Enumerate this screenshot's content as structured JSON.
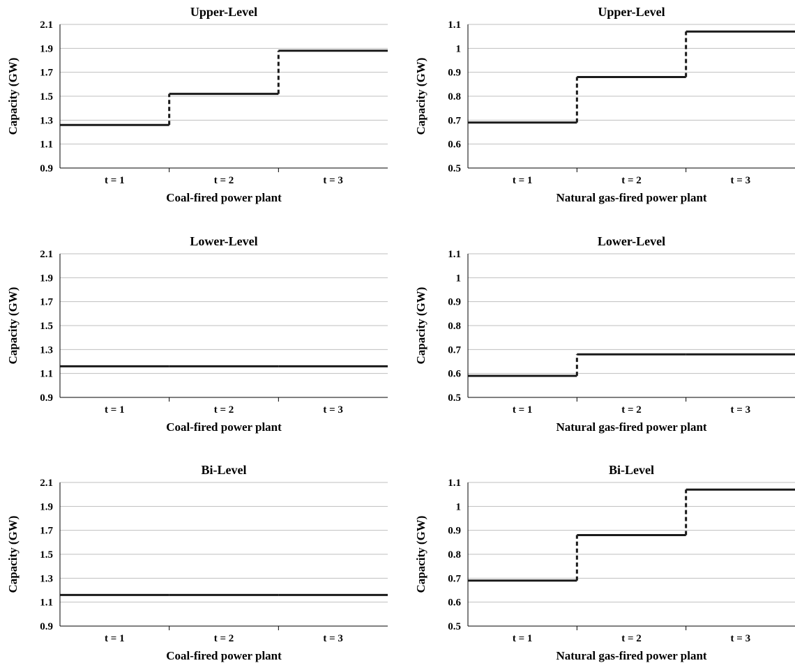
{
  "chart_data": [
    {
      "type": "line",
      "title": "Upper-Level",
      "xlabel": "Coal-fired power plant",
      "ylabel": "Capacity (GW)",
      "categories": [
        "t = 1",
        "t = 2",
        "t = 3"
      ],
      "yticks": [
        "0.9",
        "1.1",
        "1.3",
        "1.5",
        "1.7",
        "1.9",
        "2.1"
      ],
      "ylim": [
        0.9,
        2.1
      ],
      "step": true,
      "grid": true,
      "series": [
        {
          "values": [
            1.26,
            1.52,
            1.88
          ]
        }
      ]
    },
    {
      "type": "line",
      "title": "Upper-Level",
      "xlabel": "Natural gas-fired power plant",
      "ylabel": "Capacity (GW)",
      "categories": [
        "t = 1",
        "t = 2",
        "t = 3"
      ],
      "yticks": [
        "0.5",
        "0.6",
        "0.7",
        "0.8",
        "0.9",
        "1",
        "1.1"
      ],
      "ylim": [
        0.5,
        1.1
      ],
      "step": true,
      "grid": true,
      "series": [
        {
          "values": [
            0.69,
            0.88,
            1.07
          ]
        }
      ]
    },
    {
      "type": "line",
      "title": "Lower-Level",
      "xlabel": "Coal-fired power plant",
      "ylabel": "Capacity (GW)",
      "categories": [
        "t = 1",
        "t = 2",
        "t = 3"
      ],
      "yticks": [
        "0.9",
        "1.1",
        "1.3",
        "1.5",
        "1.7",
        "1.9",
        "2.1"
      ],
      "ylim": [
        0.9,
        2.1
      ],
      "step": true,
      "grid": true,
      "series": [
        {
          "values": [
            1.16,
            1.16,
            1.16
          ]
        }
      ]
    },
    {
      "type": "line",
      "title": "Lower-Level",
      "xlabel": "Natural gas-fired power plant",
      "ylabel": "Capacity (GW)",
      "categories": [
        "t = 1",
        "t = 2",
        "t = 3"
      ],
      "yticks": [
        "0.5",
        "0.6",
        "0.7",
        "0.8",
        "0.9",
        "1",
        "1.1"
      ],
      "ylim": [
        0.5,
        1.1
      ],
      "step": true,
      "grid": true,
      "series": [
        {
          "values": [
            0.59,
            0.68,
            0.68
          ]
        }
      ]
    },
    {
      "type": "line",
      "title": "Bi-Level",
      "xlabel": "Coal-fired power plant",
      "ylabel": "Capacity (GW)",
      "categories": [
        "t = 1",
        "t = 2",
        "t = 3"
      ],
      "yticks": [
        "0.9",
        "1.1",
        "1.3",
        "1.5",
        "1.7",
        "1.9",
        "2.1"
      ],
      "ylim": [
        0.9,
        2.1
      ],
      "step": true,
      "grid": true,
      "series": [
        {
          "values": [
            1.16,
            1.16,
            1.16
          ]
        }
      ]
    },
    {
      "type": "line",
      "title": "Bi-Level",
      "xlabel": "Natural gas-fired power plant",
      "ylabel": "Capacity (GW)",
      "categories": [
        "t = 1",
        "t = 2",
        "t = 3"
      ],
      "yticks": [
        "0.5",
        "0.6",
        "0.7",
        "0.8",
        "0.9",
        "1",
        "1.1"
      ],
      "ylim": [
        0.5,
        1.1
      ],
      "step": true,
      "grid": true,
      "series": [
        {
          "values": [
            0.69,
            0.88,
            1.07
          ]
        }
      ]
    }
  ],
  "colors": {
    "line": "#1a1a1a",
    "grid": "#bfbfbf",
    "axis": "#000000"
  }
}
